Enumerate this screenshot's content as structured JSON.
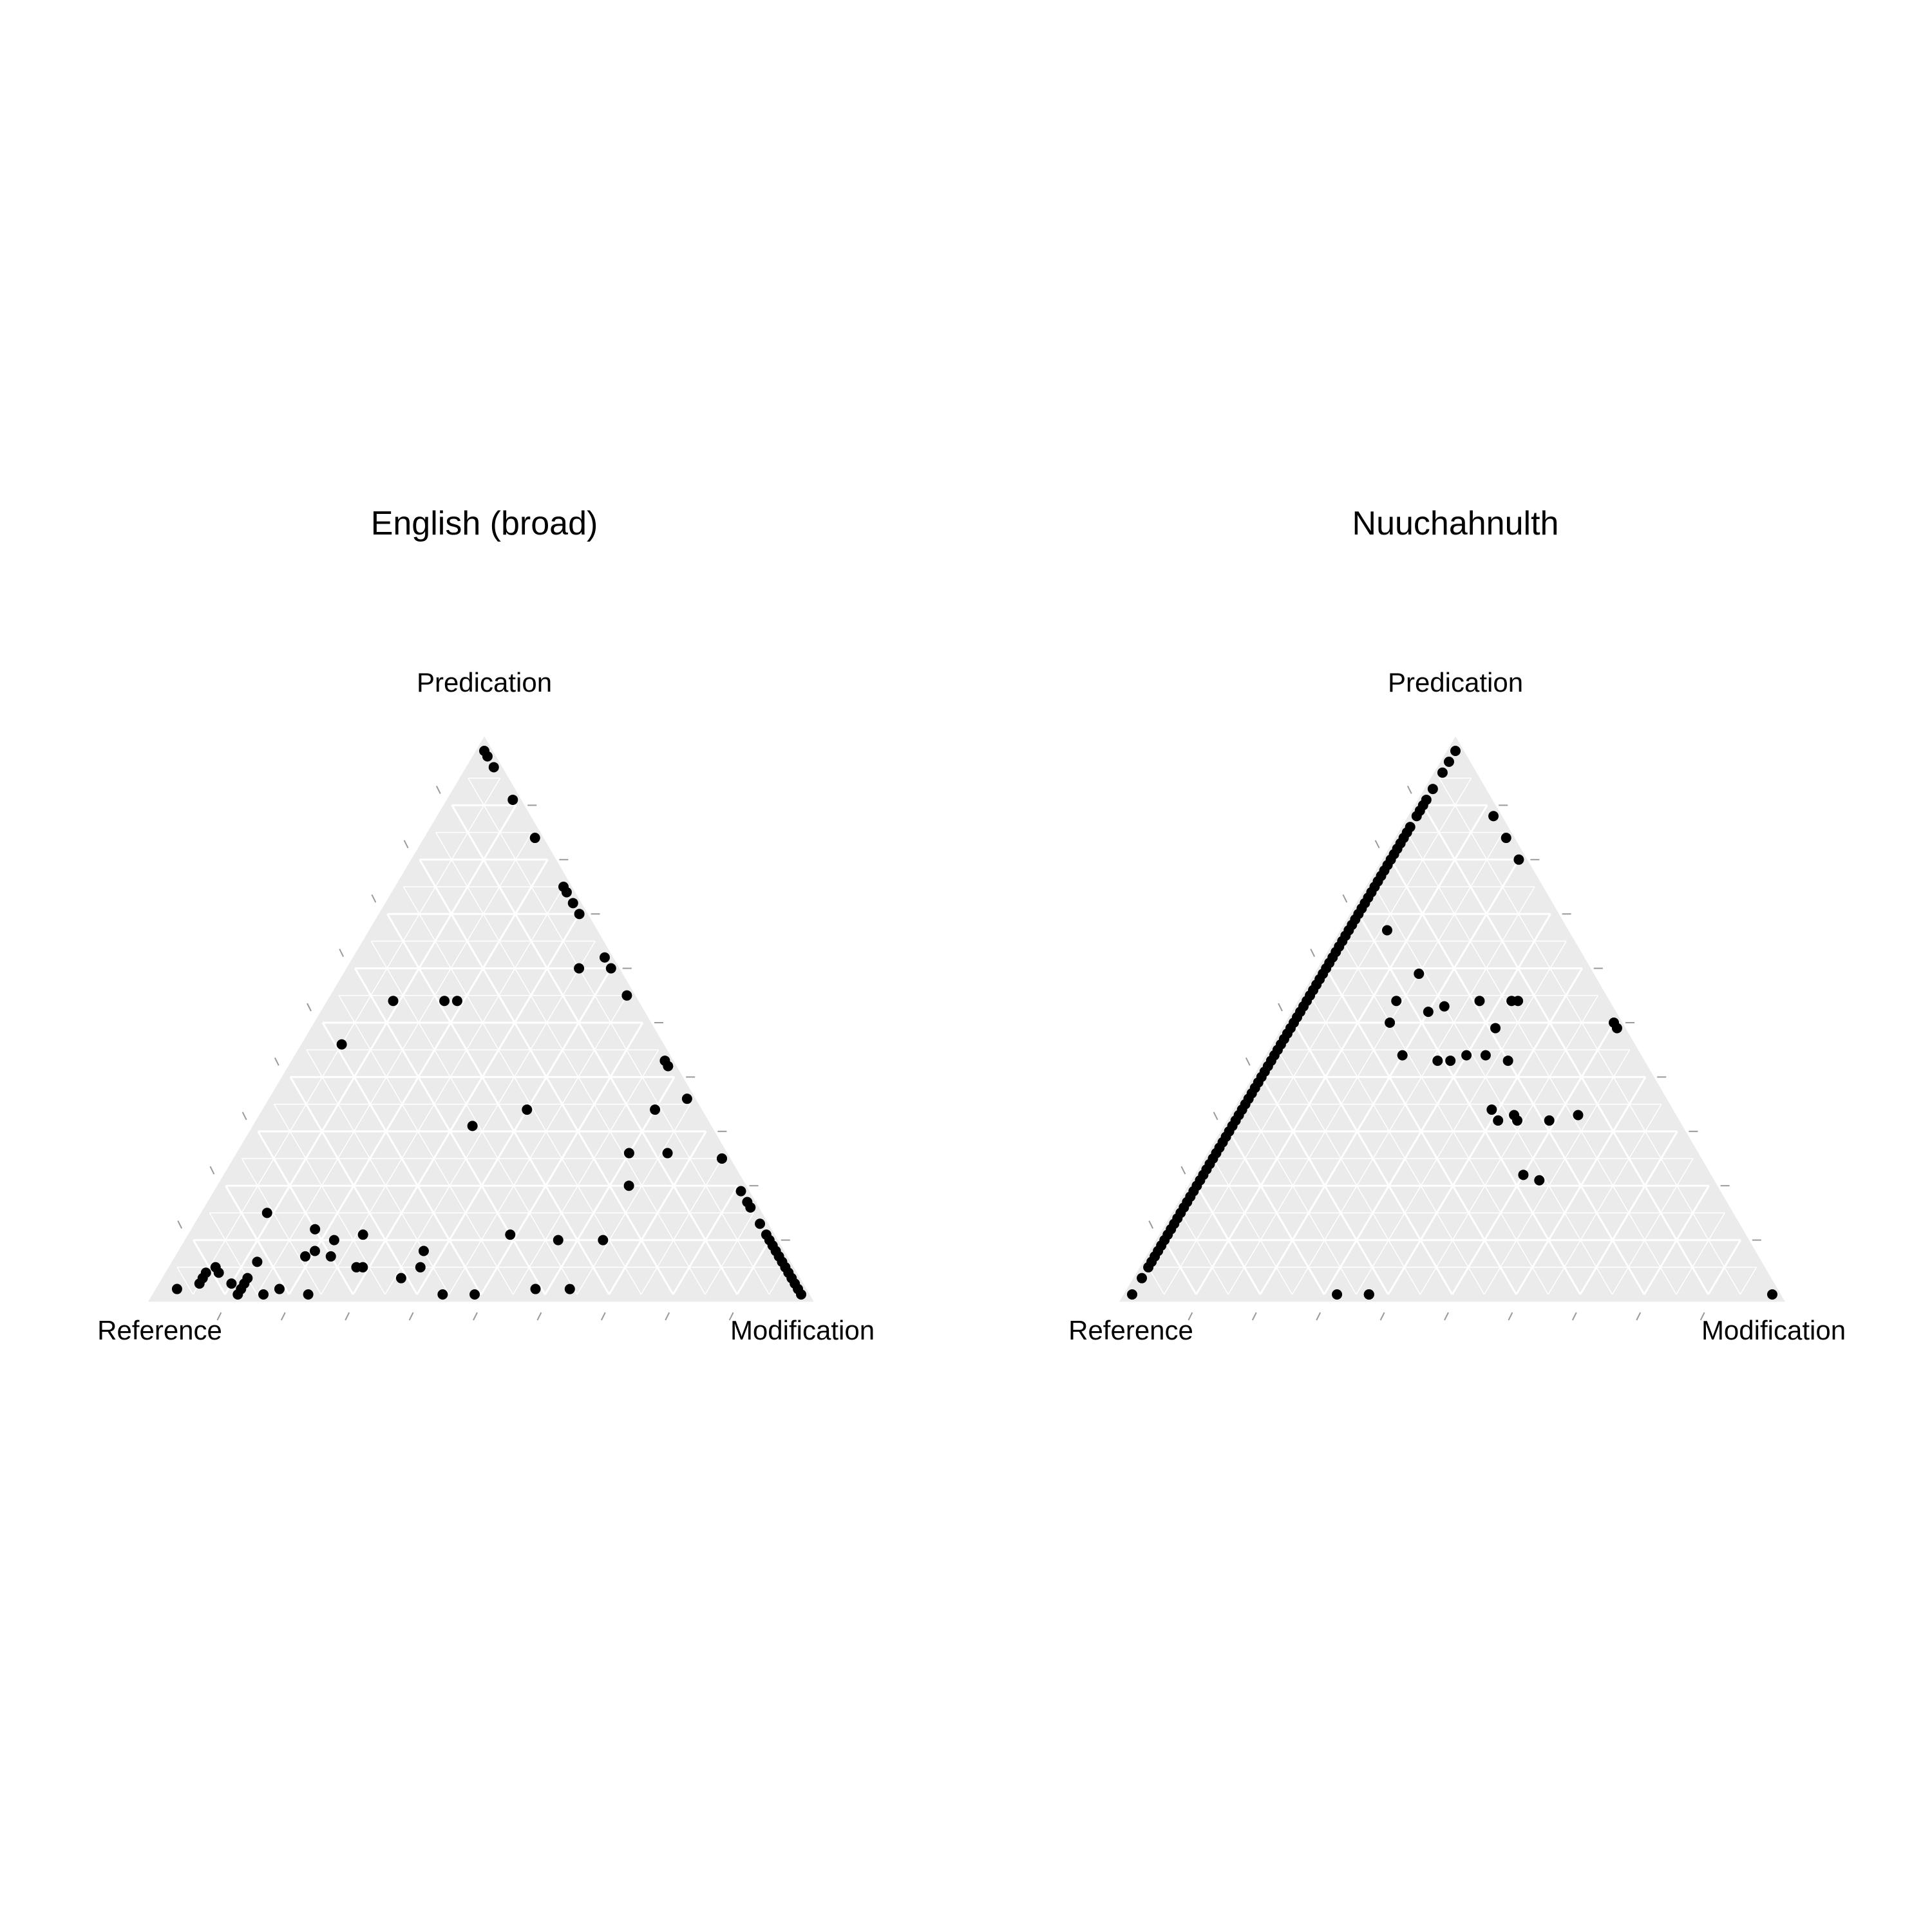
{
  "chart_data": [
    {
      "type": "scatter",
      "subtype": "ternary",
      "title": "English (broad)",
      "axes": {
        "top": "Predication",
        "left": "Reference",
        "right": "Modification"
      },
      "grid": true,
      "point_fields": [
        "predication",
        "reference",
        "modification"
      ],
      "points": [
        [
          1.0,
          0.0,
          0.0
        ],
        [
          0.99,
          0.0,
          0.01
        ],
        [
          0.97,
          0.0,
          0.03
        ],
        [
          0.91,
          0.0,
          0.09
        ],
        [
          0.84,
          0.0,
          0.16
        ],
        [
          0.75,
          0.0,
          0.25
        ],
        [
          0.74,
          0.0,
          0.26
        ],
        [
          0.72,
          0.0,
          0.28
        ],
        [
          0.7,
          0.0,
          0.3
        ],
        [
          0.62,
          0.0,
          0.38
        ],
        [
          0.6,
          0.0,
          0.4
        ],
        [
          0.55,
          0.0,
          0.45
        ],
        [
          0.43,
          0.0,
          0.57
        ],
        [
          0.42,
          0.0,
          0.58
        ],
        [
          0.36,
          0.0,
          0.64
        ],
        [
          0.25,
          0.0,
          0.75
        ],
        [
          0.25,
          0.0,
          0.75
        ],
        [
          0.19,
          0.0,
          0.81
        ],
        [
          0.17,
          0.0,
          0.83
        ],
        [
          0.16,
          0.0,
          0.84
        ],
        [
          0.13,
          0.0,
          0.87
        ],
        [
          0.11,
          0.0,
          0.89
        ],
        [
          0.1,
          0.0,
          0.9
        ],
        [
          0.09,
          0.0,
          0.91
        ],
        [
          0.08,
          0.0,
          0.92
        ],
        [
          0.07,
          0.0,
          0.93
        ],
        [
          0.06,
          0.0,
          0.94
        ],
        [
          0.05,
          0.0,
          0.95
        ],
        [
          0.04,
          0.0,
          0.96
        ],
        [
          0.03,
          0.0,
          0.97
        ],
        [
          0.02,
          0.0,
          0.98
        ],
        [
          0.01,
          0.0,
          0.99
        ],
        [
          0.0,
          0.0,
          1.0
        ],
        [
          0.6,
          0.05,
          0.35
        ],
        [
          0.34,
          0.06,
          0.6
        ],
        [
          0.26,
          0.14,
          0.6
        ],
        [
          0.26,
          0.08,
          0.66
        ],
        [
          0.2,
          0.17,
          0.63
        ],
        [
          0.31,
          0.36,
          0.33
        ],
        [
          0.34,
          0.26,
          0.4
        ],
        [
          0.54,
          0.27,
          0.19
        ],
        [
          0.54,
          0.29,
          0.17
        ],
        [
          0.54,
          0.37,
          0.09
        ],
        [
          0.46,
          0.49,
          0.05
        ],
        [
          0.1,
          0.26,
          0.64
        ],
        [
          0.11,
          0.4,
          0.49
        ],
        [
          0.08,
          0.55,
          0.37
        ],
        [
          0.1,
          0.33,
          0.57
        ],
        [
          0.05,
          0.67,
          0.28
        ],
        [
          0.15,
          0.76,
          0.09
        ],
        [
          0.11,
          0.63,
          0.26
        ],
        [
          0.05,
          0.57,
          0.38
        ],
        [
          0.03,
          0.61,
          0.36
        ],
        [
          0.07,
          0.7,
          0.23
        ],
        [
          0.01,
          0.41,
          0.58
        ],
        [
          0.01,
          0.36,
          0.64
        ],
        [
          0.0,
          0.51,
          0.49
        ],
        [
          0.0,
          0.56,
          0.44
        ],
        [
          0.08,
          0.72,
          0.2
        ],
        [
          0.12,
          0.7,
          0.18
        ],
        [
          0.1,
          0.68,
          0.22
        ],
        [
          0.06,
          0.82,
          0.12
        ],
        [
          0.05,
          0.89,
          0.06
        ],
        [
          0.04,
          0.91,
          0.05
        ],
        [
          0.04,
          0.89,
          0.07
        ],
        [
          0.02,
          0.93,
          0.05
        ],
        [
          0.02,
          0.88,
          0.1
        ],
        [
          0.01,
          0.97,
          0.02
        ],
        [
          0.01,
          0.87,
          0.12
        ],
        [
          0.03,
          0.85,
          0.12
        ],
        [
          0.0,
          0.88,
          0.12
        ],
        [
          0.0,
          0.84,
          0.16
        ],
        [
          0.0,
          0.77,
          0.23
        ],
        [
          0.01,
          0.81,
          0.18
        ],
        [
          0.03,
          0.92,
          0.05
        ],
        [
          0.02,
          0.86,
          0.12
        ],
        [
          0.07,
          0.74,
          0.19
        ],
        [
          0.05,
          0.66,
          0.29
        ]
      ]
    },
    {
      "type": "scatter",
      "subtype": "ternary",
      "title": "Nuuchahnulth",
      "axes": {
        "top": "Predication",
        "left": "Reference",
        "right": "Modification"
      },
      "grid": true,
      "point_fields": [
        "predication",
        "reference",
        "modification"
      ],
      "points": [
        [
          1.0,
          0.0,
          0.0
        ],
        [
          0.98,
          0.02,
          0.0
        ],
        [
          0.96,
          0.04,
          0.0
        ],
        [
          0.93,
          0.07,
          0.0
        ],
        [
          0.91,
          0.09,
          0.0
        ],
        [
          0.9,
          0.1,
          0.0
        ],
        [
          0.89,
          0.11,
          0.0
        ],
        [
          0.88,
          0.12,
          0.0
        ],
        [
          0.86,
          0.14,
          0.0
        ],
        [
          0.85,
          0.15,
          0.0
        ],
        [
          0.84,
          0.16,
          0.0
        ],
        [
          0.83,
          0.17,
          0.0
        ],
        [
          0.82,
          0.18,
          0.0
        ],
        [
          0.81,
          0.19,
          0.0
        ],
        [
          0.8,
          0.2,
          0.0
        ],
        [
          0.79,
          0.21,
          0.0
        ],
        [
          0.78,
          0.22,
          0.0
        ],
        [
          0.77,
          0.23,
          0.0
        ],
        [
          0.76,
          0.24,
          0.0
        ],
        [
          0.75,
          0.25,
          0.0
        ],
        [
          0.74,
          0.26,
          0.0
        ],
        [
          0.73,
          0.27,
          0.0
        ],
        [
          0.72,
          0.28,
          0.0
        ],
        [
          0.71,
          0.29,
          0.0
        ],
        [
          0.7,
          0.3,
          0.0
        ],
        [
          0.69,
          0.31,
          0.0
        ],
        [
          0.68,
          0.32,
          0.0
        ],
        [
          0.67,
          0.33,
          0.0
        ],
        [
          0.66,
          0.34,
          0.0
        ],
        [
          0.65,
          0.35,
          0.0
        ],
        [
          0.64,
          0.36,
          0.0
        ],
        [
          0.63,
          0.37,
          0.0
        ],
        [
          0.62,
          0.38,
          0.0
        ],
        [
          0.61,
          0.39,
          0.0
        ],
        [
          0.6,
          0.4,
          0.0
        ],
        [
          0.59,
          0.41,
          0.0
        ],
        [
          0.58,
          0.42,
          0.0
        ],
        [
          0.57,
          0.43,
          0.0
        ],
        [
          0.56,
          0.44,
          0.0
        ],
        [
          0.55,
          0.45,
          0.0
        ],
        [
          0.54,
          0.46,
          0.0
        ],
        [
          0.53,
          0.47,
          0.0
        ],
        [
          0.52,
          0.48,
          0.0
        ],
        [
          0.51,
          0.49,
          0.0
        ],
        [
          0.5,
          0.5,
          0.0
        ],
        [
          0.49,
          0.51,
          0.0
        ],
        [
          0.48,
          0.52,
          0.0
        ],
        [
          0.47,
          0.53,
          0.0
        ],
        [
          0.46,
          0.54,
          0.0
        ],
        [
          0.45,
          0.55,
          0.0
        ],
        [
          0.44,
          0.56,
          0.0
        ],
        [
          0.43,
          0.57,
          0.0
        ],
        [
          0.42,
          0.58,
          0.0
        ],
        [
          0.41,
          0.59,
          0.0
        ],
        [
          0.4,
          0.6,
          0.0
        ],
        [
          0.39,
          0.61,
          0.0
        ],
        [
          0.38,
          0.62,
          0.0
        ],
        [
          0.37,
          0.63,
          0.0
        ],
        [
          0.36,
          0.64,
          0.0
        ],
        [
          0.35,
          0.65,
          0.0
        ],
        [
          0.34,
          0.66,
          0.0
        ],
        [
          0.33,
          0.67,
          0.0
        ],
        [
          0.32,
          0.68,
          0.0
        ],
        [
          0.31,
          0.69,
          0.0
        ],
        [
          0.3,
          0.7,
          0.0
        ],
        [
          0.29,
          0.71,
          0.0
        ],
        [
          0.28,
          0.72,
          0.0
        ],
        [
          0.27,
          0.73,
          0.0
        ],
        [
          0.26,
          0.74,
          0.0
        ],
        [
          0.25,
          0.75,
          0.0
        ],
        [
          0.24,
          0.76,
          0.0
        ],
        [
          0.23,
          0.77,
          0.0
        ],
        [
          0.22,
          0.78,
          0.0
        ],
        [
          0.21,
          0.79,
          0.0
        ],
        [
          0.2,
          0.8,
          0.0
        ],
        [
          0.19,
          0.81,
          0.0
        ],
        [
          0.18,
          0.82,
          0.0
        ],
        [
          0.17,
          0.83,
          0.0
        ],
        [
          0.16,
          0.84,
          0.0
        ],
        [
          0.15,
          0.85,
          0.0
        ],
        [
          0.14,
          0.86,
          0.0
        ],
        [
          0.13,
          0.87,
          0.0
        ],
        [
          0.12,
          0.88,
          0.0
        ],
        [
          0.11,
          0.89,
          0.0
        ],
        [
          0.1,
          0.9,
          0.0
        ],
        [
          0.09,
          0.91,
          0.0
        ],
        [
          0.08,
          0.92,
          0.0
        ],
        [
          0.07,
          0.93,
          0.0
        ],
        [
          0.06,
          0.94,
          0.0
        ],
        [
          0.05,
          0.95,
          0.0
        ],
        [
          0.03,
          0.97,
          0.0
        ],
        [
          0.0,
          1.0,
          0.0
        ],
        [
          0.88,
          0.0,
          0.12
        ],
        [
          0.84,
          0.0,
          0.16
        ],
        [
          0.8,
          0.0,
          0.2
        ],
        [
          0.49,
          0.0,
          0.51
        ],
        [
          0.5,
          0.0,
          0.5
        ],
        [
          0.0,
          0.0,
          1.0
        ],
        [
          0.67,
          0.27,
          0.06
        ],
        [
          0.59,
          0.26,
          0.15
        ],
        [
          0.54,
          0.32,
          0.14
        ],
        [
          0.53,
          0.25,
          0.22
        ],
        [
          0.52,
          0.28,
          0.2
        ],
        [
          0.5,
          0.35,
          0.15
        ],
        [
          0.44,
          0.36,
          0.2
        ],
        [
          0.43,
          0.29,
          0.28
        ],
        [
          0.43,
          0.31,
          0.26
        ],
        [
          0.44,
          0.26,
          0.3
        ],
        [
          0.54,
          0.13,
          0.33
        ],
        [
          0.54,
          0.14,
          0.32
        ],
        [
          0.54,
          0.19,
          0.27
        ],
        [
          0.49,
          0.19,
          0.32
        ],
        [
          0.44,
          0.23,
          0.33
        ],
        [
          0.43,
          0.2,
          0.37
        ],
        [
          0.34,
          0.27,
          0.39
        ],
        [
          0.32,
          0.27,
          0.41
        ],
        [
          0.33,
          0.24,
          0.43
        ],
        [
          0.33,
          0.14,
          0.53
        ],
        [
          0.32,
          0.19,
          0.49
        ],
        [
          0.32,
          0.24,
          0.44
        ],
        [
          0.22,
          0.28,
          0.5
        ],
        [
          0.21,
          0.26,
          0.53
        ],
        [
          0.0,
          0.68,
          0.32
        ],
        [
          0.0,
          0.63,
          0.37
        ],
        [
          0.0,
          0.63,
          0.37
        ],
        [
          0.0,
          0.63,
          0.37
        ]
      ]
    }
  ]
}
